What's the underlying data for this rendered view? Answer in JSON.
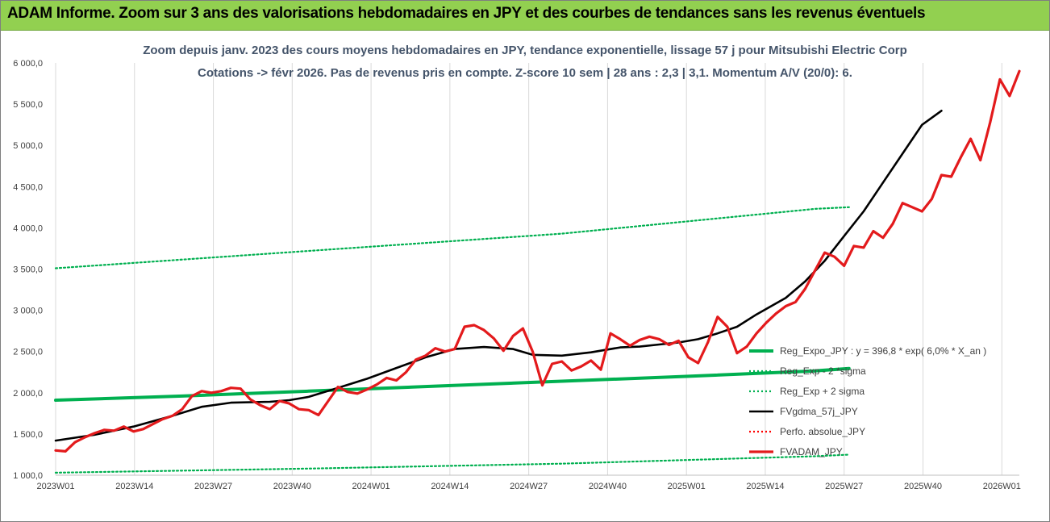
{
  "banner": {
    "title": "ADAM Informe. Zoom sur 3 ans des valorisations hebdomadaires en JPY et des courbes de tendances sans les revenus éventuels",
    "background": "#92d050"
  },
  "chart_data": {
    "type": "line",
    "title_line1": "Zoom depuis janv. 2023 des cours moyens hebdomadaires en JPY, tendance exponentielle, lissage 57 j pour Mitsubishi Electric Corp",
    "title_line2": "Cotations -> févr 2026.  Pas de revenus pris en compte. Z-score 10 sem | 28 ans : 2,3 | 3,1. Momentum A/V (20/0): 6.",
    "ylim": [
      1000,
      6000
    ],
    "y_ticks": [
      "1 000,0",
      "1 500,0",
      "2 000,0",
      "2 500,0",
      "3 000,0",
      "3 500,0",
      "4 000,0",
      "4 500,0",
      "5 000,0",
      "5 500,0",
      "6 000,0"
    ],
    "x_tick_labels": [
      "2023W01",
      "2023W14",
      "2023W27",
      "2023W40",
      "2024W01",
      "2024W14",
      "2024W27",
      "2024W40",
      "2025W01",
      "2025W14",
      "2025W27",
      "2025W40",
      "2026W01"
    ],
    "n_weeks": 164,
    "grid": "vertical",
    "legend_position": "right",
    "series": [
      {
        "name": "Reg_Expo_JPY : y = 396,8 * exp( 6,0% *  X_an )",
        "color": "#00b050",
        "style": "thick",
        "anchors": [
          [
            0,
            1910
          ],
          [
            26,
            1960
          ],
          [
            52,
            2020
          ],
          [
            78,
            2080
          ],
          [
            104,
            2140
          ],
          [
            130,
            2200
          ],
          [
            156,
            2265
          ],
          [
            163,
            2295
          ]
        ]
      },
      {
        "name": "Reg_Exp - 2 *sigma",
        "color": "#00b050",
        "style": "dotted",
        "anchors": [
          [
            0,
            1030
          ],
          [
            52,
            1080
          ],
          [
            104,
            1140
          ],
          [
            156,
            1230
          ],
          [
            163,
            1250
          ]
        ]
      },
      {
        "name": "Reg_Exp + 2 sigma",
        "color": "#00b050",
        "style": "dotted",
        "anchors": [
          [
            0,
            3510
          ],
          [
            52,
            3720
          ],
          [
            104,
            3930
          ],
          [
            156,
            4230
          ],
          [
            163,
            4250
          ]
        ]
      },
      {
        "name": "FVgdma_57j_JPY",
        "color": "#000000",
        "style": "solid",
        "anchors": [
          [
            0,
            1420
          ],
          [
            8,
            1490
          ],
          [
            16,
            1590
          ],
          [
            24,
            1720
          ],
          [
            30,
            1830
          ],
          [
            36,
            1880
          ],
          [
            44,
            1890
          ],
          [
            48,
            1910
          ],
          [
            52,
            1950
          ],
          [
            58,
            2060
          ],
          [
            64,
            2170
          ],
          [
            70,
            2300
          ],
          [
            76,
            2430
          ],
          [
            82,
            2530
          ],
          [
            88,
            2555
          ],
          [
            94,
            2530
          ],
          [
            98,
            2460
          ],
          [
            104,
            2450
          ],
          [
            110,
            2490
          ],
          [
            116,
            2550
          ],
          [
            120,
            2560
          ],
          [
            124,
            2585
          ],
          [
            128,
            2610
          ],
          [
            132,
            2650
          ],
          [
            136,
            2720
          ],
          [
            140,
            2800
          ],
          [
            144,
            2950
          ],
          [
            150,
            3150
          ],
          [
            154,
            3350
          ],
          [
            158,
            3600
          ],
          [
            162,
            3900
          ],
          [
            166,
            4200
          ],
          [
            170,
            4550
          ],
          [
            174,
            4900
          ],
          [
            178,
            5250
          ],
          [
            182,
            5420
          ]
        ]
      },
      {
        "name": "Perfo. absolue_JPY",
        "color": "#ff0000",
        "style": "dotted",
        "anchors": []
      },
      {
        "name": "FVADAM_JPY",
        "color": "#e31a1c",
        "style": "thick",
        "anchors": [
          [
            0,
            1300
          ],
          [
            2,
            1290
          ],
          [
            4,
            1400
          ],
          [
            6,
            1460
          ],
          [
            8,
            1510
          ],
          [
            10,
            1550
          ],
          [
            12,
            1540
          ],
          [
            14,
            1590
          ],
          [
            16,
            1530
          ],
          [
            18,
            1560
          ],
          [
            20,
            1620
          ],
          [
            22,
            1680
          ],
          [
            24,
            1720
          ],
          [
            26,
            1800
          ],
          [
            28,
            1960
          ],
          [
            30,
            2020
          ],
          [
            32,
            2000
          ],
          [
            34,
            2020
          ],
          [
            36,
            2060
          ],
          [
            38,
            2050
          ],
          [
            40,
            1920
          ],
          [
            42,
            1850
          ],
          [
            44,
            1800
          ],
          [
            46,
            1900
          ],
          [
            48,
            1870
          ],
          [
            50,
            1800
          ],
          [
            52,
            1790
          ],
          [
            54,
            1730
          ],
          [
            56,
            1900
          ],
          [
            58,
            2070
          ],
          [
            60,
            2010
          ],
          [
            62,
            1990
          ],
          [
            64,
            2040
          ],
          [
            66,
            2100
          ],
          [
            68,
            2180
          ],
          [
            70,
            2150
          ],
          [
            72,
            2250
          ],
          [
            74,
            2400
          ],
          [
            76,
            2450
          ],
          [
            78,
            2540
          ],
          [
            80,
            2500
          ],
          [
            82,
            2530
          ],
          [
            84,
            2800
          ],
          [
            86,
            2820
          ],
          [
            88,
            2760
          ],
          [
            90,
            2660
          ],
          [
            92,
            2510
          ],
          [
            94,
            2690
          ],
          [
            96,
            2780
          ],
          [
            98,
            2500
          ],
          [
            100,
            2090
          ],
          [
            102,
            2350
          ],
          [
            104,
            2380
          ],
          [
            106,
            2270
          ],
          [
            108,
            2320
          ],
          [
            110,
            2390
          ],
          [
            112,
            2280
          ],
          [
            114,
            2720
          ],
          [
            116,
            2650
          ],
          [
            118,
            2570
          ],
          [
            120,
            2640
          ],
          [
            122,
            2680
          ],
          [
            124,
            2650
          ],
          [
            126,
            2580
          ],
          [
            128,
            2630
          ],
          [
            130,
            2430
          ],
          [
            132,
            2360
          ],
          [
            134,
            2610
          ],
          [
            136,
            2920
          ],
          [
            138,
            2800
          ],
          [
            140,
            2480
          ],
          [
            142,
            2560
          ],
          [
            144,
            2720
          ],
          [
            146,
            2850
          ],
          [
            148,
            2960
          ],
          [
            150,
            3050
          ],
          [
            152,
            3100
          ],
          [
            154,
            3260
          ],
          [
            156,
            3480
          ],
          [
            158,
            3700
          ],
          [
            160,
            3650
          ],
          [
            162,
            3540
          ],
          [
            164,
            3780
          ],
          [
            166,
            3760
          ],
          [
            168,
            3960
          ],
          [
            170,
            3880
          ],
          [
            172,
            4050
          ],
          [
            174,
            4300
          ],
          [
            176,
            4250
          ],
          [
            178,
            4200
          ],
          [
            180,
            4350
          ],
          [
            182,
            4640
          ],
          [
            184,
            4620
          ],
          [
            186,
            4860
          ],
          [
            188,
            5080
          ],
          [
            190,
            4820
          ],
          [
            192,
            5280
          ],
          [
            194,
            5800
          ],
          [
            196,
            5600
          ],
          [
            198,
            5900
          ]
        ]
      }
    ]
  }
}
